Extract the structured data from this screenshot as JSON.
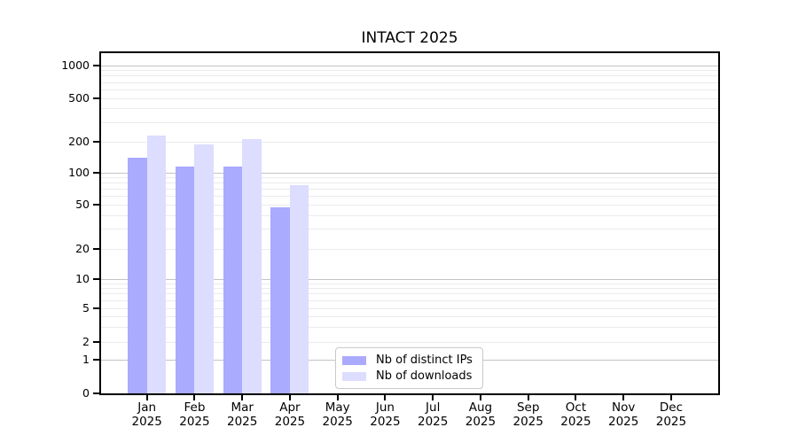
{
  "title": "INTACT 2025",
  "chart_data": {
    "type": "bar",
    "title": "INTACT 2025",
    "year": "2025",
    "months": [
      "Jan",
      "Feb",
      "Mar",
      "Apr",
      "May",
      "Jun",
      "Jul",
      "Aug",
      "Sep",
      "Oct",
      "Nov",
      "Dec"
    ],
    "categories": [
      "Jan 2025",
      "Feb 2025",
      "Mar 2025",
      "Apr 2025",
      "May 2025",
      "Jun 2025",
      "Jul 2025",
      "Aug 2025",
      "Sep 2025",
      "Oct 2025",
      "Nov 2025",
      "Dec 2025"
    ],
    "series": [
      {
        "name": "Nb of distinct IPs",
        "color": "#aaaaff",
        "values": [
          140,
          115,
          115,
          47,
          0,
          0,
          0,
          0,
          0,
          0,
          0,
          0
        ]
      },
      {
        "name": "Nb of downloads",
        "color": "#ddddff",
        "values": [
          230,
          190,
          210,
          77,
          0,
          0,
          0,
          0,
          0,
          0,
          0,
          0
        ]
      }
    ],
    "yscale": "symlog",
    "ylim": [
      0,
      1000
    ],
    "y_tick_labels": [
      "0",
      "1",
      "2",
      "5",
      "10",
      "20",
      "50",
      "100",
      "200",
      "500",
      "1000"
    ],
    "y_ticks": [
      0,
      1,
      2,
      5,
      10,
      20,
      50,
      100,
      200,
      500,
      1000
    ],
    "y_major_gridlines": [
      1,
      10,
      100,
      1000
    ],
    "y_minor_gridlines": [
      2,
      3,
      4,
      5,
      6,
      7,
      8,
      9,
      20,
      30,
      40,
      50,
      60,
      70,
      80,
      90,
      200,
      300,
      400,
      500,
      600,
      700,
      800,
      900
    ],
    "grid": "horizontal only",
    "legend": {
      "position": "bottom-center",
      "entries": [
        "Nb of distinct IPs",
        "Nb of downloads"
      ]
    },
    "colors": {
      "bar_distinct_ips": "#aaaaff",
      "bar_downloads": "#ddddff",
      "axis": "#000000",
      "grid_major": "#c3c3c3",
      "grid_minor": "#ebebeb",
      "legend_border": "#c9c9c9",
      "background": "#ffffff",
      "text": "#000000"
    }
  }
}
